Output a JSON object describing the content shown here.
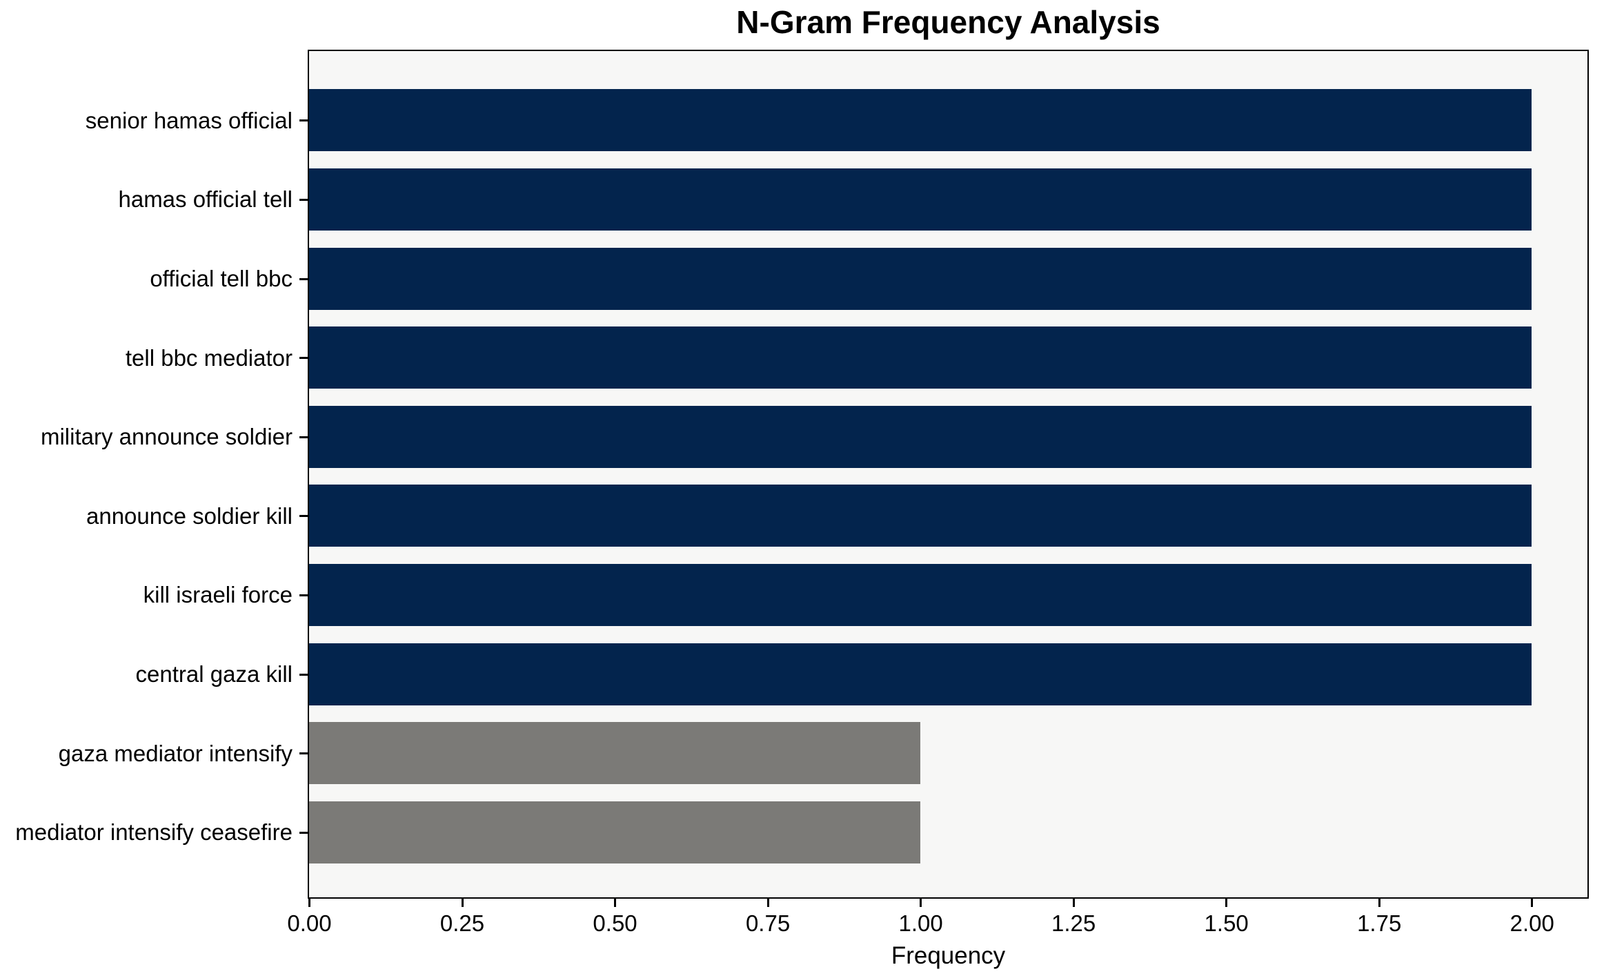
{
  "chart_data": {
    "type": "bar",
    "orientation": "horizontal",
    "title": "N-Gram Frequency Analysis",
    "xlabel": "Frequency",
    "ylabel": "",
    "categories": [
      "senior hamas official",
      "hamas official tell",
      "official tell bbc",
      "tell bbc mediator",
      "military announce soldier",
      "announce soldier kill",
      "kill israeli force",
      "central gaza kill",
      "gaza mediator intensify",
      "mediator intensify ceasefire"
    ],
    "values": [
      2,
      2,
      2,
      2,
      2,
      2,
      2,
      2,
      1,
      1
    ],
    "bar_colors": [
      "#03244d",
      "#03244d",
      "#03244d",
      "#03244d",
      "#03244d",
      "#03244d",
      "#03244d",
      "#03244d",
      "#7b7a77",
      "#7b7a77"
    ],
    "xlim": [
      0,
      2.09
    ],
    "xticks": [
      0,
      0.25,
      0.5,
      0.75,
      1.0,
      1.25,
      1.5,
      1.75,
      2.0
    ],
    "xtick_labels": [
      "0.00",
      "0.25",
      "0.50",
      "0.75",
      "1.00",
      "1.25",
      "1.50",
      "1.75",
      "2.00"
    ],
    "grid": false,
    "legend_position": "none",
    "styles": {
      "bar_color_frequent": "#03244d",
      "bar_color_single": "#7b7a77",
      "plot_background": "#f7f7f6",
      "figure_background": "#ffffff",
      "spine_color": "#000000",
      "text_color": "#000000"
    }
  }
}
